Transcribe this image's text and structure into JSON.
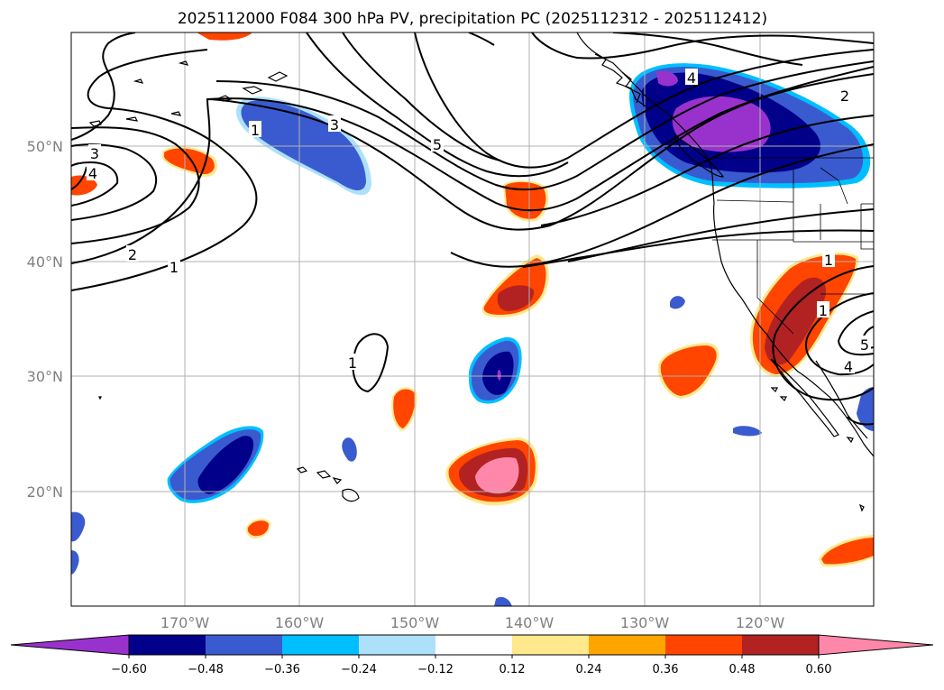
{
  "title": "2025112000 F084 300 hPa PV, precipitation PC (2025112312 - 2025112412)",
  "map": {
    "lon_labels": [
      "170°W",
      "160°W",
      "150°W",
      "140°W",
      "130°W",
      "120°W"
    ],
    "lat_labels": [
      "50°N",
      "40°N",
      "30°N",
      "20°N"
    ],
    "contour_labels": [
      "1",
      "2",
      "3",
      "4",
      "3",
      "1",
      "5",
      "2",
      "4",
      "1",
      "4",
      "5",
      "1",
      "1"
    ]
  },
  "colorbar": {
    "colors": [
      "#9932CC",
      "#00008B",
      "#3A5BCF",
      "#00BFFF",
      "#ADE1FA",
      "#FFFFFF",
      "#FFE98C",
      "#FFA500",
      "#FF4500",
      "#B22222",
      "#FF88AA"
    ],
    "ticks": [
      "−0.60",
      "−0.48",
      "−0.36",
      "−0.24",
      "−0.12",
      "0.12",
      "0.24",
      "0.36",
      "0.48",
      "0.60"
    ]
  },
  "colors": {
    "grid": "#b0b0b0",
    "land_line": "#000000",
    "contour": "#000000"
  }
}
